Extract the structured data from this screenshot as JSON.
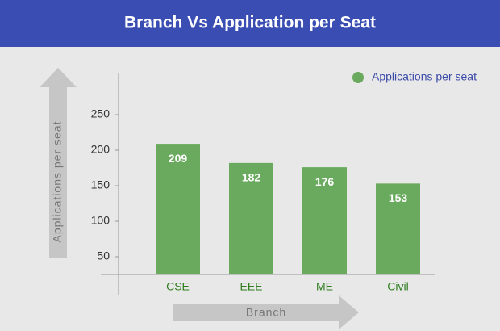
{
  "chart_data": {
    "type": "bar",
    "title": "Branch Vs Application per Seat",
    "x_label": "Branch",
    "y_label": "Applications per seat",
    "categories": [
      "CSE",
      "EEE",
      "ME",
      "Civil"
    ],
    "series": [
      {
        "name": "Applications per seat",
        "color": "#6aaa5e",
        "values": [
          209,
          182,
          176,
          153
        ]
      }
    ],
    "ylim": [
      25,
      300
    ],
    "yticks": [
      50,
      100,
      150,
      200,
      250
    ],
    "grid": false,
    "legend": "top-right"
  }
}
